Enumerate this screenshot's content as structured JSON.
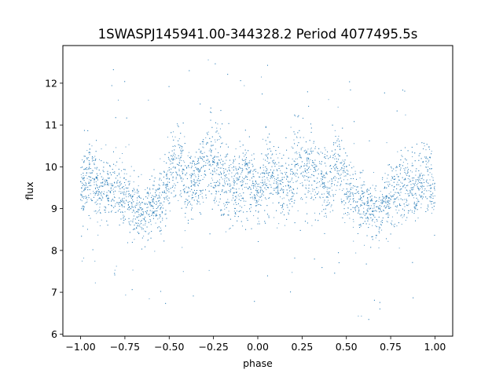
{
  "chart_data": {
    "type": "scatter",
    "title": "1SWASPJ145941.00-344328.2 Period 4077495.5s",
    "xlabel": "phase",
    "ylabel": "flux",
    "xlim": [
      -1.1,
      1.1
    ],
    "ylim": [
      5.95,
      12.9
    ],
    "x_ticks": [
      -1.0,
      -0.75,
      -0.5,
      -0.25,
      0.0,
      0.25,
      0.5,
      0.75,
      1.0
    ],
    "x_tick_labels": [
      "−1.00",
      "−0.75",
      "−0.50",
      "−0.25",
      "0.00",
      "0.25",
      "0.50",
      "0.75",
      "1.00"
    ],
    "y_ticks": [
      6,
      7,
      8,
      9,
      10,
      11,
      12
    ],
    "y_tick_labels": [
      "6",
      "7",
      "8",
      "9",
      "10",
      "11",
      "12"
    ],
    "grid": false,
    "point_color": "#1f77b4",
    "series": [
      {
        "x_range": [
          -1.0,
          1.0
        ],
        "mirrored_at_phase_zero": true,
        "profile": {
          "phase": [
            0.0,
            0.05,
            0.1,
            0.15,
            0.2,
            0.25,
            0.3,
            0.35,
            0.4,
            0.45,
            0.5,
            0.55,
            0.6,
            0.65,
            0.7,
            0.75,
            0.8,
            0.85,
            0.9,
            0.95,
            1.0
          ],
          "median_flux": [
            9.3,
            9.8,
            9.6,
            9.4,
            9.8,
            10.1,
            10.0,
            9.7,
            9.5,
            10.2,
            9.6,
            9.2,
            9.1,
            8.9,
            9.0,
            9.3,
            9.6,
            9.4,
            9.5,
            9.8,
            9.4
          ],
          "spread": [
            0.6,
            0.8,
            0.8,
            0.7,
            0.9,
            0.9,
            0.9,
            0.8,
            0.8,
            0.9,
            0.8,
            0.7,
            0.7,
            0.6,
            0.7,
            0.7,
            0.8,
            0.7,
            0.7,
            0.8,
            0.6
          ]
        },
        "flux_range": [
          6.2,
          12.6
        ]
      }
    ]
  }
}
